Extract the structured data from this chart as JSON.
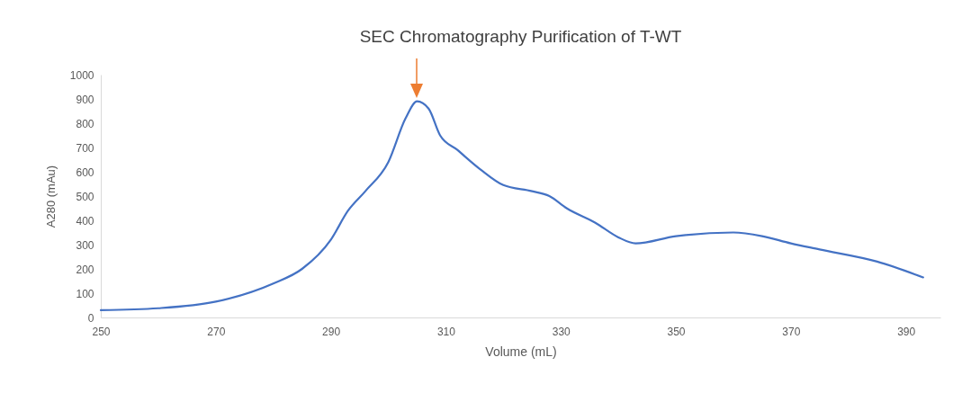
{
  "chart_data": {
    "type": "line",
    "title": "SEC Chromatography Purification of T-WT",
    "xlabel": "Volume (mL)",
    "ylabel": "A280 (mAu)",
    "x": [
      250,
      260,
      270,
      280,
      285,
      290,
      293,
      296,
      300,
      303,
      305,
      307,
      309,
      312,
      316,
      320,
      325,
      328,
      331,
      336,
      340,
      343,
      350,
      360,
      365,
      370,
      375,
      385,
      393
    ],
    "series": [
      {
        "color": "#4472c4",
        "values": [
          30,
          38,
          65,
          140,
          200,
          320,
          440,
          520,
          640,
          820,
          890,
          860,
          750,
          690,
          610,
          545,
          520,
          500,
          450,
          390,
          330,
          305,
          335,
          350,
          335,
          305,
          280,
          230,
          165
        ]
      }
    ],
    "xlim": [
      250,
      396
    ],
    "xticks": [
      250,
      270,
      290,
      310,
      330,
      350,
      370,
      390
    ],
    "ylim": [
      0,
      1000
    ],
    "yticks": [
      0,
      100,
      200,
      300,
      400,
      500,
      600,
      700,
      800,
      900,
      1000
    ],
    "grid": false,
    "marker": "none",
    "line_style": "solid"
  }
}
